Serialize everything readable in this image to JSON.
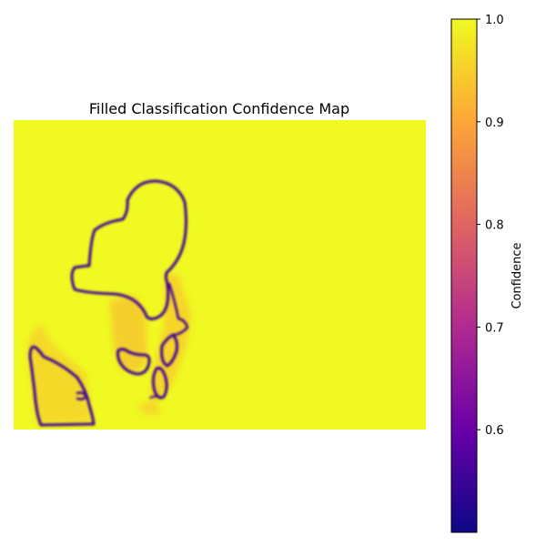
{
  "chart_data": {
    "type": "heatmap",
    "title": "Filled Classification Confidence Map",
    "xlabel": "",
    "ylabel": "",
    "axes_visible": false,
    "background_value": 1.0,
    "colormap": "plasma",
    "colorbar": {
      "label": "Confidence",
      "range": [
        0.5,
        1.0
      ],
      "ticks": [
        {
          "value": 1.0,
          "label": "1.0"
        },
        {
          "value": 0.9,
          "label": "0.9"
        },
        {
          "value": 0.8,
          "label": "0.8"
        },
        {
          "value": 0.7,
          "label": "0.7"
        },
        {
          "value": 0.6,
          "label": "0.6"
        }
      ],
      "stops": [
        "#0d0887",
        "#6a00a8",
        "#b12a90",
        "#e16462",
        "#fca636",
        "#f0f921"
      ]
    },
    "regions": [
      {
        "name": "upper-shape",
        "boundary_value": 0.55,
        "interior_value": 1.0
      },
      {
        "name": "lower-left-shape",
        "boundary_value": 0.55,
        "interior_value": 0.93
      },
      {
        "name": "middle-patch",
        "boundary_value": 0.6,
        "interior_value": 0.9
      },
      {
        "name": "lower-patch",
        "boundary_value": 0.65,
        "interior_value": 0.9
      }
    ]
  }
}
